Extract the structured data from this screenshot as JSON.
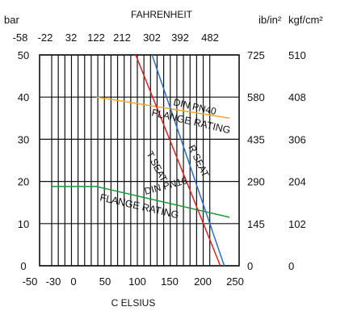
{
  "chart_data": {
    "type": "line",
    "xlabel": "C ELSIUS",
    "ylabel": "bar",
    "top_axis_label": "FAHRENHEIT",
    "right_axis_1_label": "ib/in²",
    "right_axis_2_label": "kgf/cm²",
    "xlim": [
      -30,
      230
    ],
    "ylim": [
      0,
      50
    ],
    "x_ticks": [
      "-50",
      "-30",
      "0",
      "50",
      "100",
      "150",
      "200",
      "250"
    ],
    "top_ticks": [
      "-58",
      "-22",
      "32",
      "122",
      "212",
      "302",
      "392",
      "482"
    ],
    "y_ticks": [
      "0",
      "10",
      "20",
      "30",
      "40",
      "50"
    ],
    "right_ticks_1": [
      "0",
      "145",
      "290",
      "435",
      "580",
      "725"
    ],
    "right_ticks_2": [
      "0",
      "102",
      "204",
      "306",
      "408",
      "510"
    ],
    "grid": true,
    "series": [
      {
        "name": "DIN PN40 FLANGE RATING",
        "color": "#f5a623",
        "x": [
          38,
          240
        ],
        "y": [
          40,
          35
        ]
      },
      {
        "name": "DIN PN16 FLANGE RATING",
        "color": "#1a9a3a",
        "x": [
          -30,
          38,
          240
        ],
        "y": [
          18.8,
          18.8,
          11.5
        ]
      },
      {
        "name": "T SEAT",
        "color": "#e02020",
        "x": [
          95,
          226
        ],
        "y": [
          51,
          0
        ]
      },
      {
        "name": "R SEAT",
        "color": "#2a70c8",
        "x": [
          118,
          232
        ],
        "y": [
          52,
          0
        ]
      }
    ],
    "annotations": [
      {
        "text": "DIN PN40",
        "series": 0
      },
      {
        "text": "FLANGE RATING",
        "series": 0
      },
      {
        "text": "DIN PN16",
        "series": 1
      },
      {
        "text": "FLANGE RATING",
        "series": 1
      },
      {
        "text": "T SEAT",
        "series": 2
      },
      {
        "text": "R SEAT",
        "series": 3
      }
    ]
  }
}
